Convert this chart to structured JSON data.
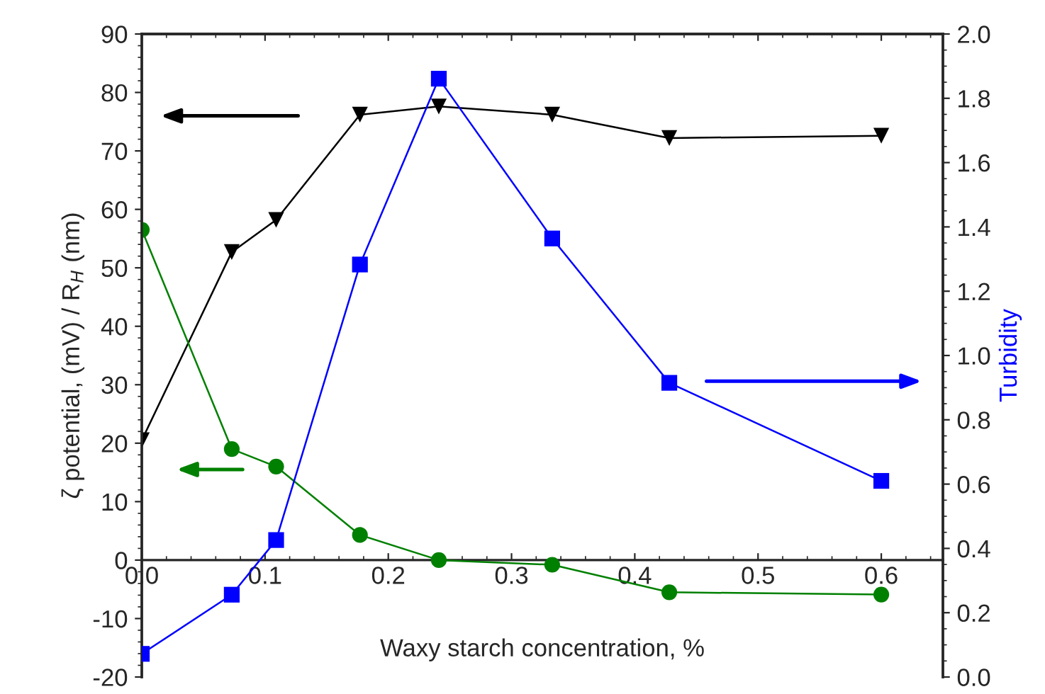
{
  "chart_data": {
    "type": "line",
    "xlabel": "Waxy starch concentration, %",
    "ylabel": "ζ potential, (mV) / R$_{H}$ (nm)",
    "y2label": "Turbidity",
    "x": [
      0,
      0.073,
      0.109,
      0.177,
      0.241,
      0.333,
      0.428,
      0.6
    ],
    "series": [
      {
        "color": "#000000",
        "marker": "triangle",
        "values": [
          20.5,
          52.7,
          58.2,
          76.2,
          77.6,
          76.2,
          72.2,
          72.6
        ]
      },
      {
        "color": "#008000",
        "marker": "circle",
        "values": [
          56.5,
          19,
          16,
          4.3,
          0,
          -0.8,
          -5.5,
          -5.9
        ]
      },
      {
        "color": "#0000ff",
        "marker": "square",
        "axis": "y2",
        "values": [
          0.072,
          0.256,
          0.426,
          1.283,
          1.861,
          1.364,
          0.915,
          0.61
        ]
      }
    ],
    "xlim": [
      0,
      0.65
    ],
    "xticks": [
      {
        "value": 0,
        "label": "0.0"
      },
      0.1,
      0.2,
      0.3,
      0.4,
      0.5,
      0.6
    ],
    "ylim": [
      -20,
      90
    ],
    "yticks": [
      -20,
      -10,
      0,
      10,
      20,
      30,
      40,
      50,
      60,
      70,
      80,
      90
    ],
    "y2lim": [
      0,
      2
    ],
    "y2ticks": [
      {
        "value": 0,
        "label": "0.0"
      },
      0.2,
      0.4,
      0.6,
      0.8,
      {
        "value": 1,
        "label": "1.0"
      },
      1.2,
      1.4,
      1.6,
      1.8,
      {
        "value": 2,
        "label": "2.0"
      }
    ],
    "grid": false,
    "legend": false
  }
}
